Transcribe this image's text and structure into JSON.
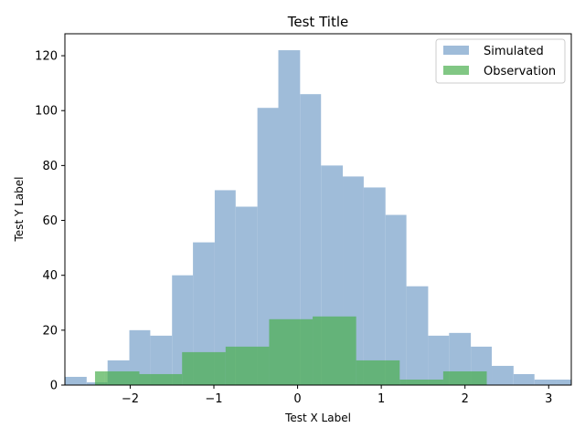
{
  "chart_data": {
    "type": "histogram",
    "title": "Test Title",
    "xlabel": "Test X Label",
    "ylabel": "Test Y Label",
    "xlim": [
      -2.78,
      3.27
    ],
    "ylim": [
      0,
      128
    ],
    "xticks": [
      -2,
      -1,
      0,
      1,
      2,
      3
    ],
    "xtick_labels": [
      "−2",
      "−1",
      "0",
      "1",
      "2",
      "3"
    ],
    "yticks": [
      0,
      20,
      40,
      60,
      80,
      100,
      120
    ],
    "legend": {
      "position": "upper right"
    },
    "series": [
      {
        "name": "Simulated",
        "color": "#9fbcd9",
        "opacity": 1,
        "bins": [
          {
            "x0": -2.78,
            "x1": -2.52,
            "value": 3
          },
          {
            "x0": -2.52,
            "x1": -2.27,
            "value": 1
          },
          {
            "x0": -2.27,
            "x1": -2.01,
            "value": 9
          },
          {
            "x0": -2.01,
            "x1": -1.76,
            "value": 20
          },
          {
            "x0": -1.76,
            "x1": -1.5,
            "value": 18
          },
          {
            "x0": -1.5,
            "x1": -1.25,
            "value": 40
          },
          {
            "x0": -1.25,
            "x1": -0.99,
            "value": 52
          },
          {
            "x0": -0.99,
            "x1": -0.74,
            "value": 71
          },
          {
            "x0": -0.74,
            "x1": -0.48,
            "value": 65
          },
          {
            "x0": -0.48,
            "x1": -0.23,
            "value": 101
          },
          {
            "x0": -0.23,
            "x1": 0.03,
            "value": 122
          },
          {
            "x0": 0.03,
            "x1": 0.28,
            "value": 106
          },
          {
            "x0": 0.28,
            "x1": 0.54,
            "value": 80
          },
          {
            "x0": 0.54,
            "x1": 0.79,
            "value": 76
          },
          {
            "x0": 0.79,
            "x1": 1.05,
            "value": 72
          },
          {
            "x0": 1.05,
            "x1": 1.3,
            "value": 62
          },
          {
            "x0": 1.3,
            "x1": 1.56,
            "value": 36
          },
          {
            "x0": 1.56,
            "x1": 1.81,
            "value": 18
          },
          {
            "x0": 1.81,
            "x1": 2.07,
            "value": 19
          },
          {
            "x0": 2.07,
            "x1": 2.32,
            "value": 14
          },
          {
            "x0": 2.32,
            "x1": 2.58,
            "value": 7
          },
          {
            "x0": 2.58,
            "x1": 2.83,
            "value": 4
          },
          {
            "x0": 2.83,
            "x1": 3.09,
            "value": 2
          },
          {
            "x0": 3.09,
            "x1": 3.27,
            "value": 2
          }
        ]
      },
      {
        "name": "Observation",
        "color": "#4caf50",
        "opacity": 0.7,
        "bins": [
          {
            "x0": -2.42,
            "x1": -2.3,
            "value": 5
          },
          {
            "x0": -2.3,
            "x1": -1.89,
            "value": 5
          },
          {
            "x0": -1.89,
            "x1": -1.38,
            "value": 4
          },
          {
            "x0": -1.38,
            "x1": -0.86,
            "value": 12
          },
          {
            "x0": -0.86,
            "x1": -0.34,
            "value": 14
          },
          {
            "x0": -0.34,
            "x1": 0.18,
            "value": 24
          },
          {
            "x0": 0.18,
            "x1": 0.7,
            "value": 25
          },
          {
            "x0": 0.7,
            "x1": 1.22,
            "value": 9
          },
          {
            "x0": 1.22,
            "x1": 1.74,
            "value": 2
          },
          {
            "x0": 1.74,
            "x1": 2.26,
            "value": 5
          }
        ]
      }
    ]
  }
}
